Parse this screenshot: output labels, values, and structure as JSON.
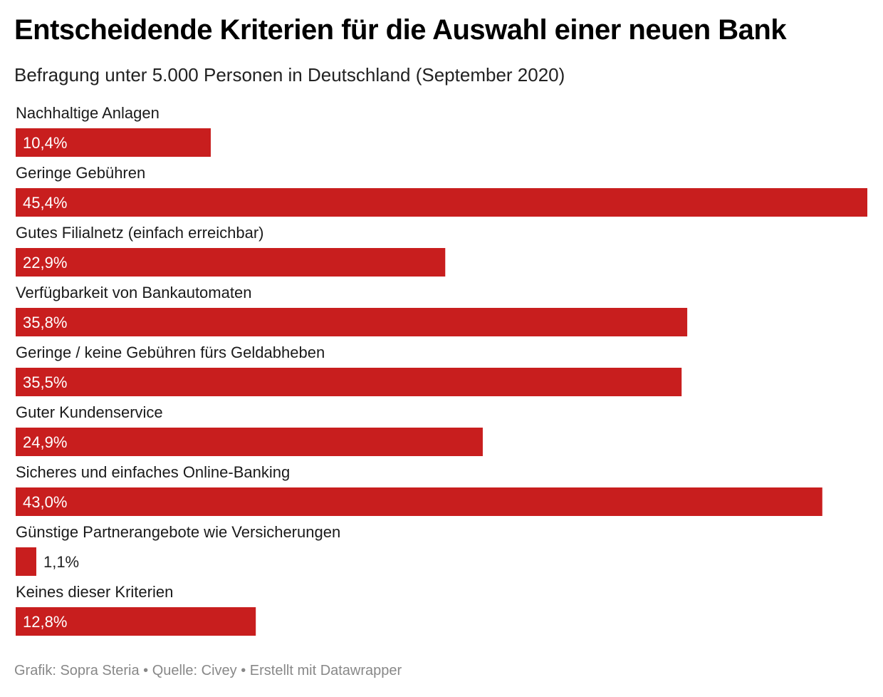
{
  "title": "Entscheidende Kriterien für die Auswahl einer neuen Bank",
  "subtitle": "Befragung unter 5.000 Personen in Deutschland (September 2020)",
  "footer": "Grafik: Sopra Steria • Quelle: Civey • Erstellt mit Datawrapper",
  "colors": {
    "bar": "#c81e1e",
    "label_inside": "#ffffff",
    "label_outside": "#222222"
  },
  "chart_data": {
    "type": "bar",
    "orientation": "horizontal",
    "categories": [
      "Nachhaltige Anlagen",
      "Geringe Gebühren",
      "Gutes Filialnetz (einfach erreichbar)",
      "Verfügbarkeit von Bankautomaten",
      "Geringe / keine Gebühren fürs Geldabheben",
      "Guter Kundenservice",
      "Sicheres und einfaches Online-Banking",
      "Günstige Partnerangebote wie Versicherungen",
      "Keines dieser Kriterien"
    ],
    "values": [
      10.4,
      45.4,
      22.9,
      35.8,
      35.5,
      24.9,
      43.0,
      1.1,
      12.8
    ],
    "value_labels": [
      "10,4%",
      "45,4%",
      "22,9%",
      "35,8%",
      "35,5%",
      "24,9%",
      "43,0%",
      "1,1%",
      "12,8%"
    ],
    "xlim": [
      0,
      45.4
    ],
    "grid": false,
    "legend": "none"
  }
}
